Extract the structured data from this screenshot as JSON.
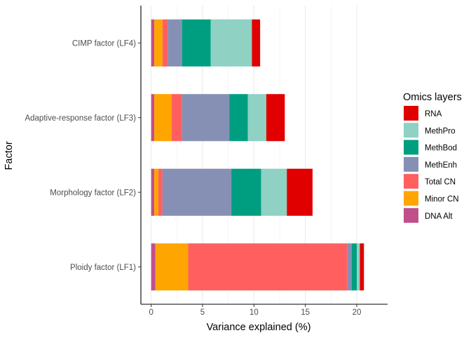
{
  "chart_data": {
    "type": "bar",
    "orientation": "horizontal",
    "stacked": true,
    "xlabel": "Variance explained (%)",
    "ylabel": "Factor",
    "xlim": [
      -1,
      23
    ],
    "xticks": [
      0,
      5,
      10,
      15,
      20
    ],
    "grid": "vertical-major",
    "legend_position": "right",
    "legend_title": "Omics layers",
    "categories": [
      "Ploidy factor (LF1)",
      "Morphology factor (LF2)",
      "Adaptive-response factor (LF3)",
      "CIMP factor (LF4)"
    ],
    "series": [
      {
        "name": "DNA Alt",
        "color": "#c0508c",
        "values": [
          0.4,
          0.3,
          0.3,
          0.3
        ]
      },
      {
        "name": "Minor CN",
        "color": "#ffa500",
        "values": [
          3.2,
          0.4,
          1.7,
          0.8
        ]
      },
      {
        "name": "Total CN",
        "color": "#ff5f5f",
        "values": [
          15.5,
          0.4,
          1.0,
          0.5
        ]
      },
      {
        "name": "MethEnh",
        "color": "#8590b4",
        "values": [
          0.4,
          6.7,
          4.6,
          1.4
        ]
      },
      {
        "name": "MethBod",
        "color": "#009e80",
        "values": [
          0.5,
          2.9,
          1.8,
          2.8
        ]
      },
      {
        "name": "MethPro",
        "color": "#8fd1c3",
        "values": [
          0.3,
          2.5,
          1.8,
          4.0
        ]
      },
      {
        "name": "RNA",
        "color": "#e00000",
        "values": [
          0.4,
          2.5,
          1.8,
          0.8
        ]
      }
    ],
    "legend_order": [
      "RNA",
      "MethPro",
      "MethBod",
      "MethEnh",
      "Total CN",
      "Minor CN",
      "DNA Alt"
    ]
  }
}
